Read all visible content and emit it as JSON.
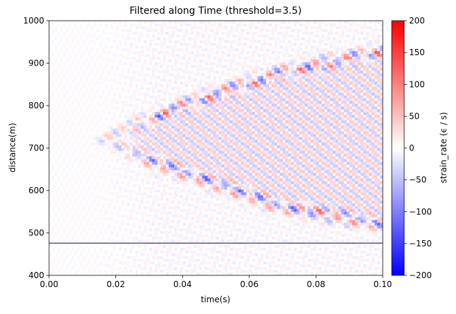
{
  "chart_data": {
    "type": "heatmap",
    "title": "Filtered along Time (threshold=3.5)",
    "xlabel": "time(s)",
    "ylabel": "distance(m)",
    "xlim": [
      0.0,
      0.1
    ],
    "ylim": [
      400,
      1000
    ],
    "x_ticks": [
      "0.00",
      "0.02",
      "0.04",
      "0.06",
      "0.08",
      "0.10"
    ],
    "x_tick_values": [
      0.0,
      0.02,
      0.04,
      0.06,
      0.08,
      0.1
    ],
    "y_ticks": [
      "400",
      "500",
      "600",
      "700",
      "800",
      "900",
      "1000"
    ],
    "y_tick_values": [
      400,
      500,
      600,
      700,
      800,
      900,
      1000
    ],
    "colormap": "bwr",
    "colors": {
      "min": "#0000ff",
      "mid": "#ffffff",
      "max": "#ff0000",
      "marker_line": "#00008b"
    },
    "colorbar": {
      "label": "strain_rate (ϵ / s)",
      "range": [
        -200,
        200
      ],
      "ticks": [
        "200",
        "150",
        "100",
        "50",
        "0",
        "−50",
        "−100",
        "−150",
        "−200"
      ],
      "tick_values": [
        200,
        150,
        100,
        50,
        0,
        -50,
        -100,
        -150,
        -200
      ]
    },
    "horizontal_line_distance": 476,
    "wavefront": {
      "apex_time": 0.016,
      "apex_distance": 720,
      "branches": [
        {
          "name": "upper",
          "points": [
            [
              0.016,
              720
            ],
            [
              0.03,
              770
            ],
            [
              0.05,
              830
            ],
            [
              0.07,
              880
            ],
            [
              0.1,
              930
            ]
          ]
        },
        {
          "name": "lower",
          "points": [
            [
              0.016,
              720
            ],
            [
              0.03,
              670
            ],
            [
              0.05,
              615
            ],
            [
              0.07,
              560
            ],
            [
              0.1,
              520
            ]
          ]
        }
      ],
      "peak_amplitude": 120
    }
  }
}
